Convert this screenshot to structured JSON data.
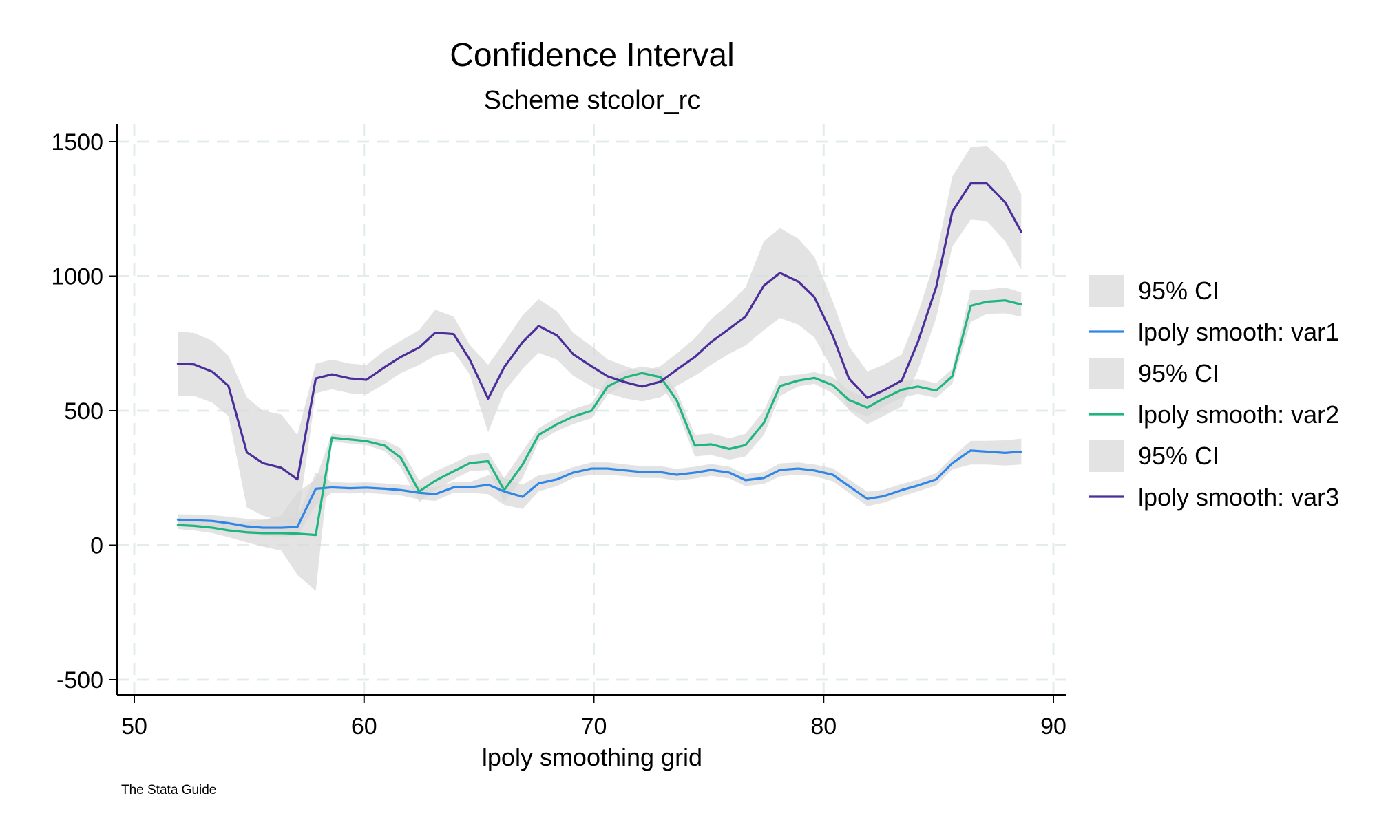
{
  "chart_data": {
    "type": "line",
    "title": "Confidence Interval",
    "subtitle": "Scheme stcolor_rc",
    "xlabel": "lpoly smoothing grid",
    "ylabel": "",
    "note": "The Stata Guide",
    "xlim": [
      50,
      90
    ],
    "ylim": [
      -500,
      1500
    ],
    "xticks": [
      50,
      60,
      70,
      80,
      90
    ],
    "yticks": [
      -500,
      0,
      500,
      1000,
      1500
    ],
    "grid": true,
    "legend_position": "right",
    "x": [
      51.9,
      52.6,
      53.4,
      54.1,
      54.9,
      55.6,
      56.4,
      57.1,
      57.9,
      58.6,
      59.4,
      60.1,
      60.9,
      61.6,
      62.4,
      63.1,
      63.9,
      64.6,
      65.4,
      66.1,
      66.9,
      67.6,
      68.4,
      69.1,
      69.9,
      70.6,
      71.4,
      72.1,
      72.9,
      73.6,
      74.4,
      75.1,
      75.9,
      76.6,
      77.4,
      78.1,
      78.9,
      79.6,
      80.4,
      81.1,
      81.9,
      82.6,
      83.4,
      84.1,
      84.9,
      85.6,
      86.4,
      87.1,
      87.9,
      88.6
    ],
    "series": [
      {
        "name": "lpoly smooth: var1",
        "ci_label": "95% CI",
        "color": "#2f86e6",
        "values": [
          95,
          93,
          90,
          82,
          70,
          65,
          65,
          68,
          210,
          215,
          212,
          214,
          210,
          205,
          195,
          190,
          215,
          215,
          225,
          200,
          180,
          230,
          245,
          270,
          285,
          285,
          278,
          272,
          272,
          262,
          270,
          280,
          270,
          242,
          250,
          280,
          285,
          278,
          262,
          220,
          172,
          182,
          205,
          222,
          245,
          305,
          352,
          348,
          343,
          348
        ],
        "lower": [
          75,
          72,
          68,
          58,
          42,
          35,
          32,
          35,
          150,
          195,
          192,
          194,
          190,
          185,
          170,
          165,
          195,
          195,
          190,
          150,
          135,
          200,
          220,
          250,
          262,
          262,
          256,
          250,
          250,
          240,
          248,
          258,
          248,
          220,
          228,
          256,
          262,
          256,
          238,
          195,
          145,
          158,
          182,
          200,
          222,
          282,
          300,
          300,
          296,
          300
        ],
        "upper": [
          115,
          114,
          112,
          106,
          98,
          95,
          98,
          101,
          270,
          235,
          232,
          234,
          230,
          225,
          220,
          215,
          235,
          235,
          260,
          250,
          225,
          260,
          270,
          290,
          308,
          308,
          300,
          294,
          294,
          284,
          292,
          302,
          292,
          264,
          272,
          304,
          308,
          300,
          286,
          245,
          199,
          206,
          228,
          244,
          268,
          328,
          388,
          388,
          390,
          396
        ]
      },
      {
        "name": "lpoly smooth: var2",
        "ci_label": "95% CI",
        "color": "#1fb57f",
        "values": [
          75,
          72,
          65,
          55,
          48,
          45,
          45,
          43,
          38,
          400,
          393,
          387,
          370,
          325,
          200,
          240,
          275,
          305,
          312,
          205,
          300,
          410,
          450,
          478,
          500,
          590,
          625,
          640,
          625,
          540,
          370,
          375,
          358,
          372,
          455,
          592,
          612,
          622,
          595,
          540,
          512,
          545,
          578,
          590,
          575,
          628,
          890,
          905,
          910,
          895
        ],
        "lower": [
          60,
          55,
          45,
          30,
          10,
          -5,
          -20,
          -110,
          -170,
          385,
          378,
          372,
          350,
          290,
          160,
          205,
          245,
          275,
          280,
          160,
          250,
          385,
          425,
          450,
          472,
          560,
          600,
          615,
          598,
          505,
          330,
          335,
          318,
          330,
          410,
          555,
          590,
          600,
          565,
          505,
          478,
          515,
          548,
          562,
          548,
          600,
          830,
          860,
          862,
          850
        ],
        "upper": [
          90,
          89,
          85,
          80,
          86,
          95,
          110,
          196,
          246,
          415,
          408,
          402,
          390,
          360,
          240,
          275,
          305,
          335,
          344,
          250,
          350,
          435,
          475,
          506,
          528,
          620,
          650,
          665,
          652,
          575,
          410,
          415,
          398,
          414,
          500,
          629,
          634,
          644,
          625,
          575,
          546,
          575,
          608,
          618,
          602,
          656,
          950,
          950,
          958,
          940
        ]
      },
      {
        "name": "lpoly smooth: var3",
        "ci_label": "95% CI",
        "color": "#4b2e9a",
        "values": [
          675,
          672,
          645,
          592,
          345,
          305,
          288,
          245,
          620,
          635,
          620,
          615,
          662,
          700,
          735,
          790,
          785,
          690,
          545,
          662,
          755,
          815,
          780,
          710,
          665,
          628,
          605,
          590,
          608,
          652,
          700,
          755,
          805,
          850,
          965,
          1012,
          980,
          922,
          778,
          620,
          548,
          575,
          612,
          755,
          960,
          1240,
          1345,
          1345,
          1275,
          1165
        ],
        "lower": [
          555,
          555,
          530,
          480,
          140,
          110,
          90,
          80,
          565,
          580,
          565,
          560,
          600,
          640,
          670,
          705,
          720,
          635,
          420,
          570,
          655,
          715,
          690,
          630,
          590,
          565,
          545,
          535,
          550,
          592,
          630,
          670,
          712,
          742,
          800,
          845,
          820,
          772,
          650,
          500,
          450,
          480,
          515,
          650,
          845,
          1110,
          1210,
          1205,
          1130,
          1025
        ],
        "upper": [
          795,
          789,
          760,
          704,
          550,
          500,
          486,
          410,
          675,
          690,
          675,
          670,
          724,
          760,
          800,
          875,
          850,
          745,
          670,
          754,
          855,
          915,
          870,
          790,
          740,
          691,
          665,
          645,
          666,
          712,
          770,
          840,
          898,
          958,
          1130,
          1179,
          1140,
          1072,
          906,
          740,
          646,
          670,
          709,
          860,
          1075,
          1370,
          1480,
          1485,
          1420,
          1305
        ]
      }
    ]
  }
}
